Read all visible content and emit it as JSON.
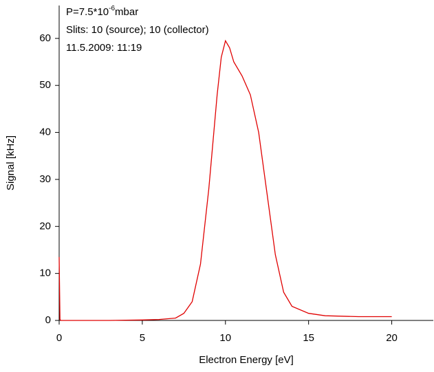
{
  "chart_data": {
    "type": "line",
    "annotation": {
      "text": "P=7.5*10",
      "sup": "-6",
      "suffix": "mbar"
    },
    "annotation_lines": [
      "Slits: 10 (source); 10 (collector)",
      "11.5.2009: 11:19"
    ],
    "xlabel": "Electron Energy [eV]",
    "ylabel": "Signal [kHz]",
    "xlim": [
      0,
      22.5
    ],
    "ylim": [
      0,
      67
    ],
    "xticks": [
      0,
      5,
      10,
      15,
      20
    ],
    "yticks": [
      0,
      10,
      20,
      30,
      40,
      50,
      60
    ],
    "series": [
      {
        "name": "Signal",
        "color": "#e00000",
        "x": [
          0,
          0.05,
          0.1,
          1,
          3,
          5,
          6,
          7,
          7.5,
          8,
          8.5,
          9,
          9.5,
          9.75,
          10,
          10.25,
          10.5,
          11,
          11.5,
          12,
          12.5,
          13,
          13.5,
          14,
          15,
          16,
          18,
          20
        ],
        "values": [
          13.5,
          0.2,
          0,
          0,
          0,
          0.1,
          0.2,
          0.5,
          1.5,
          4,
          12,
          28,
          48,
          56,
          59.5,
          58,
          55,
          52,
          48,
          40,
          27,
          14,
          6,
          3,
          1.5,
          1,
          0.8,
          0.8
        ]
      }
    ]
  }
}
